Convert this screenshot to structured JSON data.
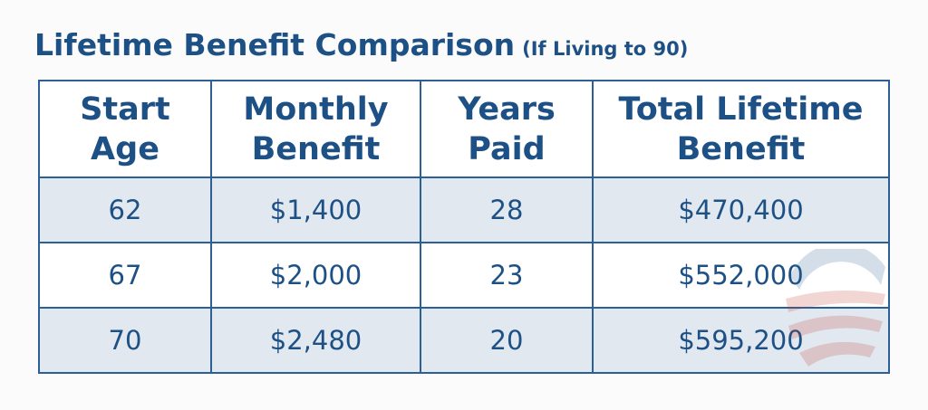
{
  "title": "Lifetime Benefit Comparison",
  "subtitle": "(If Living to 90)",
  "table": {
    "header": [
      [
        "Start",
        "Age"
      ],
      [
        "Monthly",
        "Benefit"
      ],
      [
        "Years",
        "Paid"
      ],
      [
        "Total Lifetime",
        "Benefit"
      ]
    ],
    "rows": [
      [
        "62",
        "$1,400",
        "28",
        "$470,400"
      ],
      [
        "67",
        "$2,000",
        "23",
        "$552,000"
      ],
      [
        "70",
        "$2,480",
        "20",
        "$595,200"
      ]
    ]
  }
}
